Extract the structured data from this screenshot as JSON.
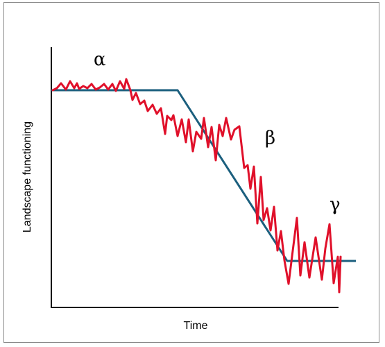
{
  "diagram": {
    "x_axis_label": "Time",
    "y_axis_label": "Landscape functioning",
    "phase_labels": {
      "alpha": "α",
      "beta": "β",
      "gamma": "γ"
    },
    "colors": {
      "trend_line": "#1b5f7e",
      "fluctuation_line": "#e0102a",
      "axis": "#000000",
      "frame": "#8a8a8a"
    }
  }
}
